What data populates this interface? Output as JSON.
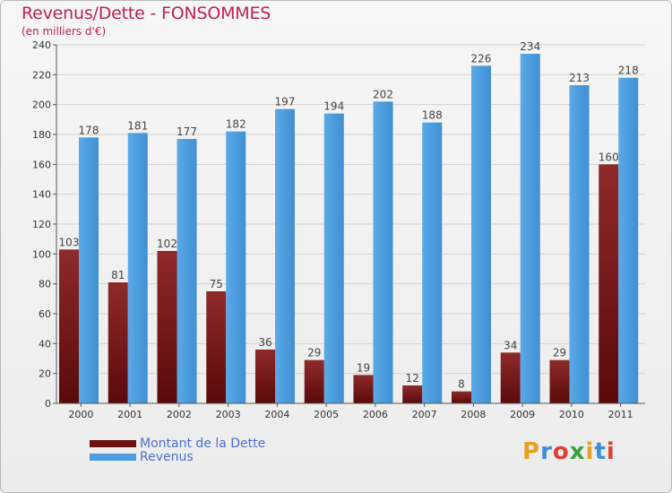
{
  "title": "Revenus/Dette - FONSOMMES",
  "subtitle": "(en milliers d'€)",
  "colors": {
    "dette": "#7a1c1c",
    "revenus": "#4f9fdf",
    "title": "#c0205a"
  },
  "chart_data": {
    "type": "bar",
    "categories": [
      "2000",
      "2001",
      "2002",
      "2003",
      "2004",
      "2005",
      "2006",
      "2007",
      "2008",
      "2009",
      "2010",
      "2011"
    ],
    "series": [
      {
        "name": "Montant de la Dette",
        "values": [
          103,
          81,
          102,
          75,
          36,
          29,
          19,
          12,
          8,
          34,
          29,
          160
        ]
      },
      {
        "name": "Revenus",
        "values": [
          178,
          181,
          177,
          182,
          197,
          194,
          202,
          188,
          226,
          234,
          213,
          218
        ]
      }
    ],
    "ylim": [
      0,
      240
    ],
    "yticks": [
      0,
      20,
      40,
      60,
      80,
      100,
      120,
      140,
      160,
      180,
      200,
      220,
      240
    ],
    "grid": true,
    "legend": "bottom-left"
  },
  "legend": [
    {
      "label": "Montant de la Dette"
    },
    {
      "label": "Revenus"
    }
  ],
  "logo": {
    "letters": [
      "P",
      "r",
      "o",
      "x",
      "i",
      "t",
      "i"
    ],
    "colors": [
      "#e8a020",
      "#3a8fd8",
      "#e04030",
      "#3aa040",
      "#e8a020",
      "#3a8fd8",
      "#e04030"
    ]
  }
}
